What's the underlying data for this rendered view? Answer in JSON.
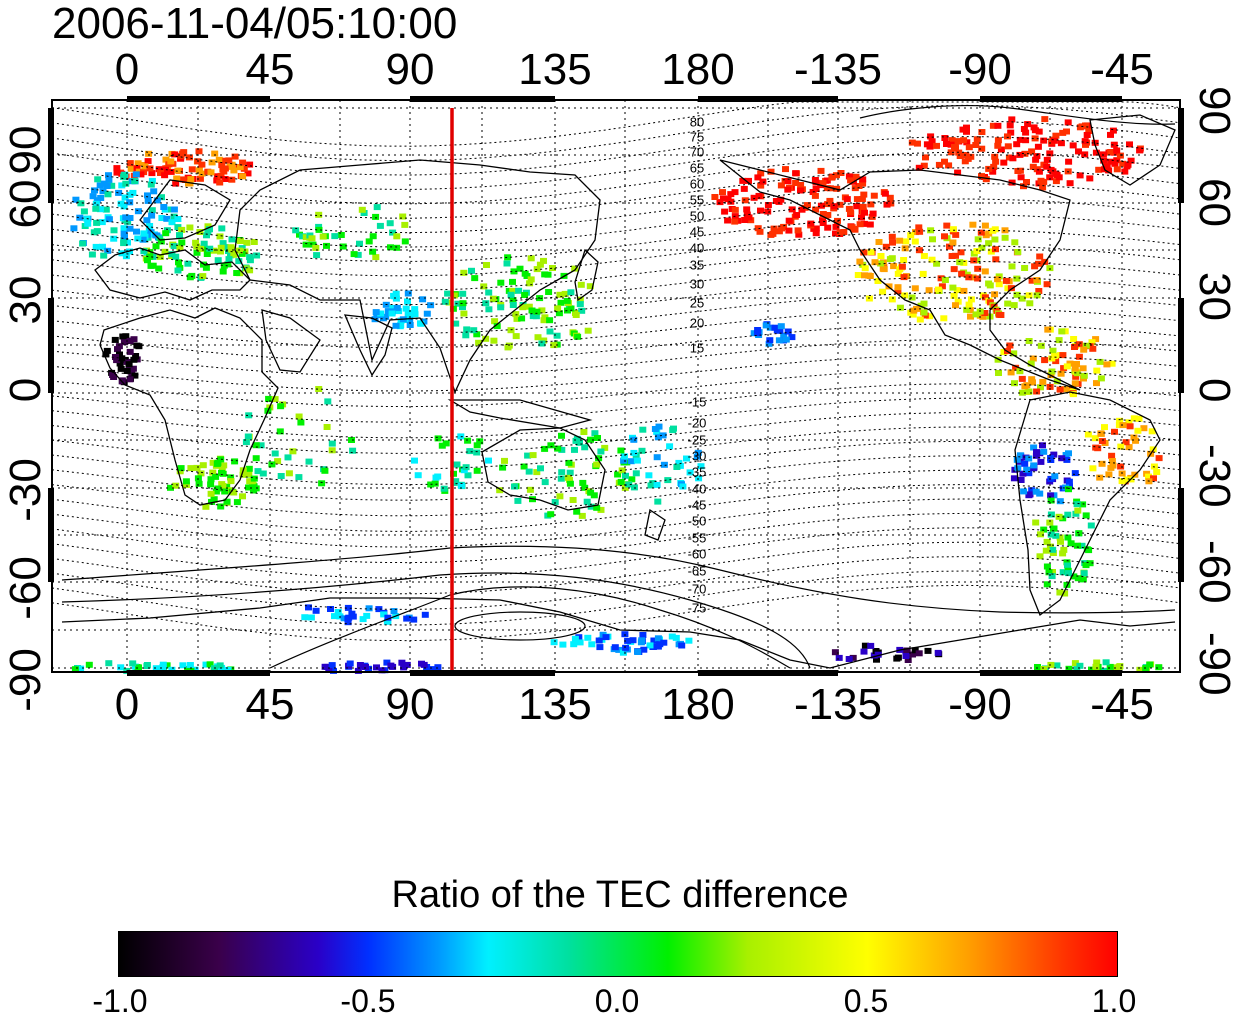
{
  "timestamp": "2006-11-04/05:10:00",
  "map": {
    "lon_tick_labels": [
      "0",
      "45",
      "90",
      "135",
      "180",
      "-135",
      "-90",
      "-45"
    ],
    "lat_tick_labels_left": [
      "90",
      "60",
      "30",
      "0",
      "-30",
      "-60",
      "-90"
    ],
    "lat_tick_labels_right": [
      "90",
      "60",
      "30",
      "0",
      "-30",
      "-60",
      "-90"
    ],
    "contour_labels": [
      "80",
      "75",
      "70",
      "65",
      "60",
      "55",
      "50",
      "45",
      "40",
      "35",
      "30",
      "25",
      "20",
      "15",
      "-15",
      "-20",
      "-25",
      "-30",
      "-35",
      "-40",
      "-45",
      "-50",
      "-55",
      "-60",
      "-65",
      "-70",
      "-75"
    ],
    "terminator_line_color": "#e00000",
    "grid": "dotted"
  },
  "colorbar": {
    "title": "Ratio of the TEC difference",
    "tick_labels": [
      "-1.0",
      "-0.5",
      "0.0",
      "0.5",
      "1.0"
    ],
    "range": [
      -1.0,
      1.0
    ],
    "colors": [
      "#000000",
      "#3a004a",
      "#2a00c8",
      "#0030ff",
      "#0098ff",
      "#00f0ff",
      "#00e0a0",
      "#00f000",
      "#a8f000",
      "#ffff00",
      "#ffa000",
      "#ff3000",
      "#ff0000"
    ]
  }
}
